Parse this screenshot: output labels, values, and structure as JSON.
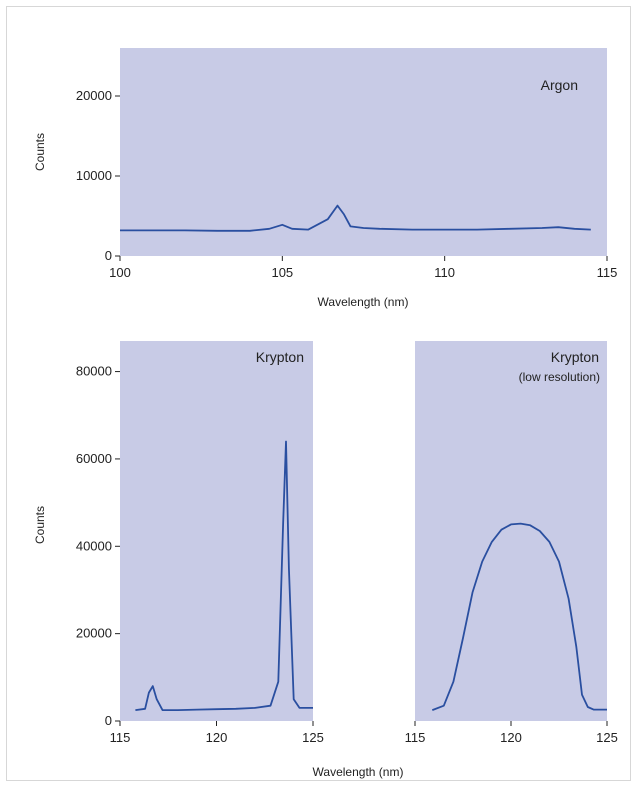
{
  "colors": {
    "plot_bg": "#c8cbe6",
    "line": "#2a4fa0",
    "text": "#222222"
  },
  "chart_data": [
    {
      "type": "line",
      "title": "Argon",
      "xlabel": "Wavelength (nm)",
      "ylabel": "Counts",
      "xlim": [
        100,
        115
      ],
      "ylim": [
        0,
        26000
      ],
      "xticks": [
        100,
        105,
        110,
        115
      ],
      "yticks": [
        0,
        10000,
        20000
      ],
      "series": [
        {
          "x": [
            100,
            101,
            102,
            103,
            104,
            104.6,
            105,
            105.3,
            105.8,
            106.4,
            106.7,
            106.9,
            107.1,
            107.5,
            108,
            109,
            110,
            111,
            112,
            113,
            113.5,
            114,
            114.5
          ],
          "y": [
            3200,
            3200,
            3200,
            3150,
            3150,
            3400,
            3900,
            3400,
            3300,
            4600,
            6300,
            5200,
            3700,
            3500,
            3400,
            3300,
            3300,
            3300,
            3400,
            3500,
            3600,
            3400,
            3300
          ]
        }
      ]
    },
    {
      "type": "line",
      "title": "Krypton",
      "xlabel": "",
      "ylabel": "Counts",
      "xlim": [
        115,
        125
      ],
      "ylim": [
        0,
        87000
      ],
      "xticks": [
        115,
        120,
        125
      ],
      "yticks": [
        0,
        20000,
        40000,
        60000,
        80000
      ],
      "series": [
        {
          "x": [
            115.8,
            116.3,
            116.5,
            116.7,
            116.9,
            117.2,
            118,
            119,
            120,
            121,
            122,
            122.8,
            123.2,
            123.45,
            123.6,
            123.75,
            124,
            124.3,
            125
          ],
          "y": [
            2500,
            2800,
            6500,
            8000,
            5000,
            2500,
            2500,
            2600,
            2700,
            2800,
            3000,
            3500,
            9000,
            45000,
            64000,
            35000,
            5000,
            3000,
            3000
          ]
        }
      ]
    },
    {
      "type": "line",
      "title": "Krypton",
      "subtitle": "(low resolution)",
      "xlabel": "",
      "ylabel": "",
      "xlim": [
        115,
        125
      ],
      "ylim": [
        0,
        87000
      ],
      "xticks": [
        115,
        120,
        125
      ],
      "yticks": [],
      "series": [
        {
          "x": [
            115.9,
            116.5,
            117,
            117.5,
            118,
            118.5,
            119,
            119.5,
            120,
            120.5,
            121,
            121.5,
            122,
            122.5,
            123,
            123.4,
            123.7,
            124,
            124.3,
            125
          ],
          "y": [
            2500,
            3500,
            9000,
            19000,
            29500,
            36500,
            41000,
            43800,
            45000,
            45200,
            44800,
            43500,
            41000,
            36500,
            28000,
            17000,
            6000,
            3200,
            2600,
            2600
          ]
        }
      ]
    }
  ],
  "shared": {
    "bottom_xlabel": "Wavelength (nm)"
  }
}
